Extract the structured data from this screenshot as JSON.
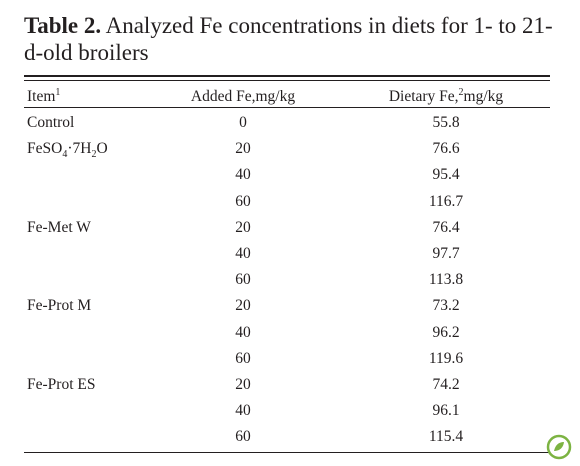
{
  "caption": {
    "label": "Table 2.",
    "text": "Analyzed Fe concentrations in diets for 1- to 21-d-old broilers"
  },
  "table": {
    "headers": [
      {
        "text": "Item",
        "note": "1"
      },
      {
        "text": "Added Fe,mg/kg"
      },
      {
        "text": "Dietary Fe,",
        "note": "2",
        "unit": "mg/kg"
      }
    ],
    "rows": [
      [
        {
          "parts": [
            "Control"
          ]
        },
        0,
        55.8
      ],
      [
        {
          "parts": [
            "FeSO",
            "4",
            "·7H",
            "2",
            "O"
          ]
        },
        20,
        76.6
      ],
      [
        null,
        40,
        95.4
      ],
      [
        null,
        60,
        116.7
      ],
      [
        {
          "parts": [
            "Fe-Met W"
          ]
        },
        20,
        76.4
      ],
      [
        null,
        40,
        97.7
      ],
      [
        null,
        60,
        113.8
      ],
      [
        {
          "parts": [
            "Fe-Prot M"
          ]
        },
        20,
        73.2
      ],
      [
        null,
        40,
        96.2
      ],
      [
        null,
        60,
        119.6
      ],
      [
        {
          "parts": [
            "Fe-Prot ES"
          ]
        },
        20,
        74.2
      ],
      [
        null,
        40,
        96.1
      ],
      [
        null,
        60,
        115.4
      ]
    ]
  }
}
